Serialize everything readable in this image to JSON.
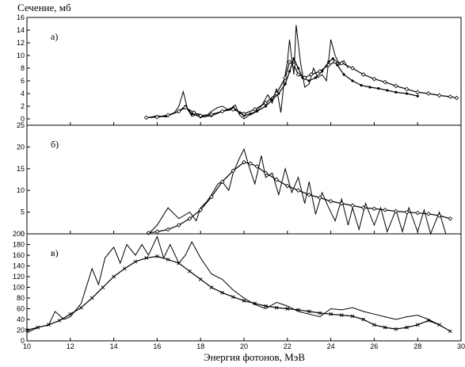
{
  "chart_data": {
    "type": "line",
    "ylabel": "Сечение, мб",
    "xlabel": "Энергия фотонов, МэВ",
    "xlim": [
      10,
      30
    ],
    "xticks": [
      10,
      12,
      14,
      16,
      18,
      20,
      22,
      24,
      26,
      28,
      30
    ],
    "panels": [
      {
        "label": "а)",
        "ylim": [
          -1,
          16
        ],
        "yticks": [
          0,
          2,
          4,
          6,
          8,
          10,
          12,
          14,
          16
        ],
        "series": [
          {
            "style": "plain",
            "x": [
              15.6,
              16.0,
              16.4,
              16.8,
              17.0,
              17.2,
              17.4,
              17.6,
              17.9,
              18.2,
              18.5,
              18.8,
              19.0,
              19.3,
              19.6,
              19.8,
              20.0,
              20.2,
              20.5,
              20.8,
              21.1,
              21.3,
              21.5,
              21.7,
              21.85,
              22.0,
              22.1,
              22.2,
              22.3,
              22.4,
              22.5,
              22.6,
              22.7,
              22.8,
              23.0,
              23.2,
              23.4,
              23.6,
              23.8,
              24.0,
              24.2,
              24.4,
              24.6,
              24.8
            ],
            "y": [
              0.2,
              0.5,
              0.3,
              1.0,
              2.0,
              4.3,
              1.5,
              0.4,
              0.8,
              0.3,
              1.2,
              1.8,
              2.0,
              1.4,
              2.2,
              0.6,
              0.0,
              0.5,
              1.0,
              2.0,
              3.8,
              2.5,
              4.8,
              1.0,
              6.0,
              9.0,
              12.5,
              9.5,
              7.0,
              14.8,
              12.0,
              9.0,
              7.0,
              5.0,
              5.5,
              8.0,
              6.5,
              7.0,
              6.0,
              12.5,
              10.0,
              8.5,
              9.2,
              8.0
            ]
          },
          {
            "style": "dots",
            "x": [
              15.5,
              16.0,
              16.5,
              17.0,
              17.3,
              17.6,
              18.0,
              18.5,
              19.0,
              19.5,
              19.8,
              20.0,
              20.3,
              20.6,
              21.0,
              21.3,
              21.6,
              21.9,
              22.1,
              22.3,
              22.5,
              22.7,
              23.0,
              23.3,
              23.6,
              23.9,
              24.1,
              24.3,
              24.6,
              25.0,
              25.4,
              25.8,
              26.2,
              26.6,
              27.0,
              27.5,
              28.0
            ],
            "y": [
              0.2,
              0.3,
              0.5,
              1.2,
              2.0,
              0.8,
              0.3,
              0.5,
              1.2,
              1.8,
              1.0,
              0.5,
              0.8,
              1.2,
              2.0,
              3.0,
              4.0,
              5.5,
              7.5,
              9.5,
              8.0,
              6.5,
              6.0,
              6.5,
              7.5,
              9.0,
              9.5,
              8.5,
              7.0,
              6.0,
              5.3,
              5.0,
              4.8,
              4.5,
              4.2,
              4.0,
              3.6
            ]
          },
          {
            "style": "diamonds",
            "x": [
              15.5,
              16.0,
              16.5,
              17.0,
              17.3,
              17.7,
              18.0,
              18.5,
              19.0,
              19.5,
              20.0,
              20.5,
              21.0,
              21.5,
              21.9,
              22.1,
              22.3,
              22.5,
              22.8,
              23.1,
              23.5,
              23.9,
              24.2,
              24.5,
              25.0,
              25.5,
              26.0,
              26.5,
              27.0,
              27.5,
              28.0,
              28.5,
              29.0,
              29.5,
              29.8
            ],
            "y": [
              0.2,
              0.3,
              0.6,
              1.2,
              1.8,
              1.0,
              0.5,
              0.7,
              1.2,
              1.5,
              0.8,
              1.5,
              2.5,
              4.0,
              6.5,
              9.0,
              8.5,
              7.0,
              6.5,
              7.0,
              7.5,
              8.5,
              9.0,
              8.8,
              8.0,
              7.0,
              6.3,
              5.8,
              5.2,
              4.7,
              4.2,
              4.0,
              3.7,
              3.5,
              3.3
            ]
          }
        ]
      },
      {
        "label": "б)",
        "ylim": [
          0,
          25
        ],
        "yticks": [
          0,
          5,
          10,
          15,
          20,
          25
        ],
        "series": [
          {
            "style": "plain",
            "x": [
              15.6,
              16.0,
              16.5,
              17.0,
              17.5,
              17.8,
              18.0,
              18.3,
              18.5,
              18.8,
              19.0,
              19.3,
              19.5,
              19.8,
              20.0,
              20.2,
              20.5,
              20.8,
              21.0,
              21.3,
              21.6,
              21.9,
              22.2,
              22.5,
              22.8,
              23.0,
              23.3,
              23.6,
              23.9,
              24.2,
              24.5,
              24.8,
              25.0,
              25.3,
              25.6,
              26.0,
              26.3,
              26.6,
              27.0,
              27.3,
              27.6,
              28.0,
              28.3,
              28.6,
              29.0,
              29.3
            ],
            "y": [
              0.0,
              2.0,
              6.0,
              3.5,
              5.0,
              3.0,
              6.0,
              7.5,
              9.0,
              11.5,
              12.0,
              10.0,
              14.0,
              17.5,
              19.5,
              16.0,
              11.5,
              18.0,
              13.0,
              14.0,
              9.0,
              15.0,
              9.5,
              13.0,
              7.0,
              12.0,
              4.5,
              9.5,
              6.0,
              3.0,
              8.0,
              2.0,
              6.0,
              1.0,
              7.0,
              2.0,
              6.0,
              0.5,
              5.5,
              0.5,
              6.0,
              0.5,
              5.5,
              0.0,
              5.0,
              0.0
            ]
          },
          {
            "style": "diamonds",
            "x": [
              15.6,
              16.0,
              16.5,
              17.0,
              17.5,
              18.0,
              18.5,
              19.0,
              19.5,
              20.0,
              20.3,
              20.6,
              21.0,
              21.5,
              22.0,
              22.5,
              23.0,
              23.5,
              24.0,
              24.5,
              25.0,
              25.5,
              26.0,
              26.5,
              27.0,
              27.5,
              28.0,
              28.5,
              29.0,
              29.5
            ],
            "y": [
              0.2,
              0.5,
              1.0,
              2.0,
              3.5,
              5.5,
              8.5,
              12.0,
              14.5,
              16.5,
              16.2,
              15.5,
              14.0,
              12.5,
              11.0,
              10.0,
              9.0,
              8.3,
              7.5,
              7.0,
              6.5,
              6.0,
              5.8,
              5.5,
              5.2,
              5.0,
              4.8,
              4.6,
              4.2,
              3.5
            ]
          }
        ]
      },
      {
        "label": "в)",
        "ylim": [
          0,
          200
        ],
        "yticks": [
          0,
          20,
          40,
          60,
          80,
          100,
          120,
          140,
          160,
          180,
          200
        ],
        "series": [
          {
            "style": "plain",
            "x": [
              10.0,
              10.5,
              11.0,
              11.3,
              11.7,
              12.0,
              12.5,
              13.0,
              13.3,
              13.6,
              14.0,
              14.3,
              14.6,
              15.0,
              15.3,
              15.6,
              16.0,
              16.3,
              16.6,
              17.0,
              17.3,
              17.6,
              18.0,
              18.5,
              19.0,
              19.5,
              20.0,
              20.5,
              21.0,
              21.5,
              22.0,
              22.5,
              23.0,
              23.5,
              24.0,
              24.5,
              25.0,
              25.5,
              26.0,
              26.5,
              27.0,
              27.5,
              28.0,
              28.5,
              29.0
            ],
            "y": [
              15,
              25,
              30,
              55,
              40,
              45,
              70,
              135,
              105,
              155,
              175,
              145,
              180,
              160,
              180,
              160,
              195,
              155,
              180,
              145,
              160,
              185,
              155,
              125,
              115,
              95,
              80,
              68,
              60,
              72,
              65,
              55,
              50,
              45,
              60,
              58,
              62,
              55,
              50,
              45,
              40,
              45,
              48,
              40,
              30
            ]
          },
          {
            "style": "stars",
            "x": [
              10.0,
              10.5,
              11.0,
              11.5,
              12.0,
              12.5,
              13.0,
              13.5,
              14.0,
              14.5,
              15.0,
              15.5,
              16.0,
              16.5,
              17.0,
              17.5,
              18.0,
              18.5,
              19.0,
              19.5,
              20.0,
              20.5,
              21.0,
              21.5,
              22.0,
              22.5,
              23.0,
              23.5,
              24.0,
              24.5,
              25.0,
              25.5,
              26.0,
              26.5,
              27.0,
              27.5,
              28.0,
              28.5,
              29.0,
              29.5
            ],
            "y": [
              20,
              25,
              30,
              38,
              50,
              62,
              80,
              100,
              120,
              135,
              148,
              155,
              158,
              152,
              145,
              130,
              115,
              100,
              90,
              82,
              75,
              70,
              65,
              62,
              60,
              58,
              55,
              52,
              50,
              48,
              46,
              40,
              30,
              25,
              22,
              25,
              30,
              38,
              30,
              18
            ]
          }
        ]
      }
    ]
  }
}
